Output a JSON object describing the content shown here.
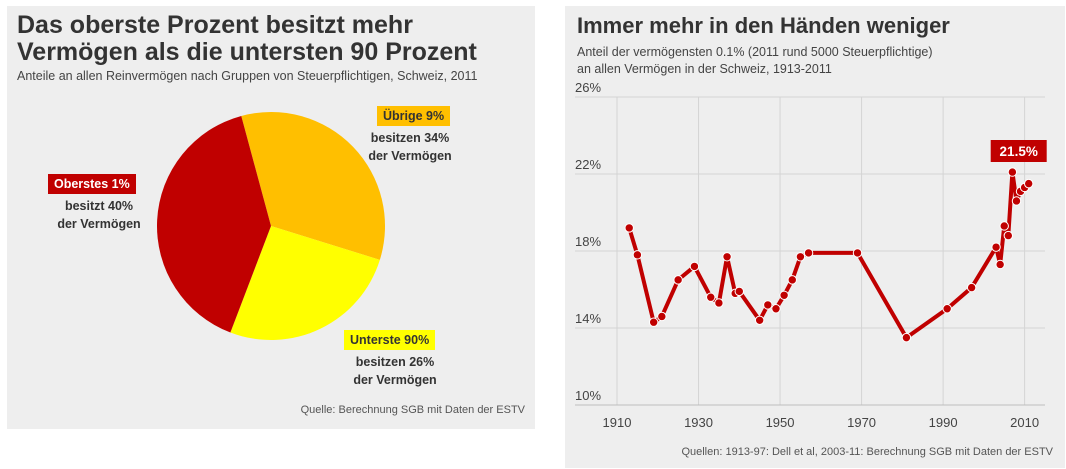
{
  "colors": {
    "dark_red": "#c00000",
    "orange": "#ffbf00",
    "yellow": "#ffff00",
    "line": "#c00000",
    "background": "#eeeeee"
  },
  "chart_data": [
    {
      "type": "pie",
      "title": "Das oberste Prozent besitzt mehr Vermögen als die untersten 90 Prozent",
      "subtitle": "Anteile an allen Reinvermögen nach Gruppen von Steuerpflichtigen, Schweiz, 2011",
      "source": "Quelle: Berechnung SGB mit Daten der ESTV",
      "slices": [
        {
          "label": "Übrige 9%",
          "description_1": "besitzen 34%",
          "description_2": "der Vermögen",
          "value": 34,
          "color": "#ffbf00"
        },
        {
          "label": "Unterste 90%",
          "description_1": "besitzen 26%",
          "description_2": "der Vermögen",
          "value": 26,
          "color": "#ffff00"
        },
        {
          "label": "Oberstes 1%",
          "description_1": "besitzt 40%",
          "description_2": "der Vermögen",
          "value": 40,
          "color": "#c00000"
        }
      ]
    },
    {
      "type": "line",
      "title": "Immer mehr in den Händen weniger",
      "subtitle_1": "Anteil der vermögensten 0.1% (2011 rund 5000 Steuerpflichtige)",
      "subtitle_2": "an allen Vermögen in der Schweiz, 1913-2011",
      "source": "Quellen: 1913-97: Dell et al, 2003-11: Berechnung SGB mit Daten der ESTV",
      "xlim": [
        1910,
        2015
      ],
      "ylim": [
        10,
        26
      ],
      "x_ticks": [
        1910,
        1930,
        1950,
        1970,
        1990,
        2010
      ],
      "y_ticks": [
        10,
        14,
        18,
        22,
        26
      ],
      "y_tick_labels": [
        "10%",
        "14%",
        "18%",
        "22%",
        "26%"
      ],
      "annotation": "21.5%",
      "series": [
        {
          "name": "Anteil der vermögensten 0.1%",
          "x": [
            1913,
            1915,
            1919,
            1921,
            1925,
            1929,
            1933,
            1935,
            1937,
            1939,
            1940,
            1945,
            1947,
            1949,
            1951,
            1953,
            1955,
            1957,
            1969,
            1981,
            1991,
            1997,
            2003,
            2004,
            2005,
            2006,
            2007,
            2008,
            2009,
            2010,
            2011
          ],
          "y": [
            19.2,
            17.8,
            14.3,
            14.6,
            16.5,
            17.2,
            15.6,
            15.3,
            17.7,
            15.8,
            15.9,
            14.4,
            15.2,
            15.0,
            15.7,
            16.5,
            17.7,
            17.9,
            17.9,
            13.5,
            15.0,
            16.1,
            18.2,
            17.3,
            19.3,
            18.8,
            22.1,
            20.6,
            21.1,
            21.3,
            21.5
          ]
        }
      ]
    }
  ]
}
